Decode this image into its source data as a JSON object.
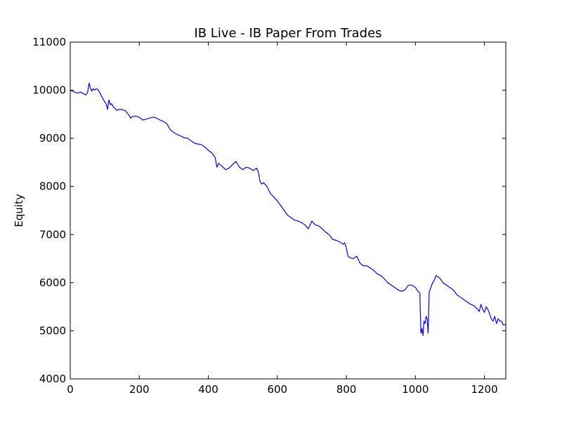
{
  "chart_data": {
    "type": "line",
    "title": "IB Live - IB Paper From Trades",
    "xlabel": "",
    "ylabel": "Equity",
    "xlim": [
      0,
      1262
    ],
    "ylim": [
      4000,
      11000
    ],
    "xticks": [
      0,
      200,
      400,
      600,
      800,
      1000,
      1200
    ],
    "yticks": [
      4000,
      5000,
      6000,
      7000,
      8000,
      9000,
      10000,
      11000
    ],
    "grid": false,
    "line_color": "#0000ff",
    "series": [
      {
        "x": [
          0,
          10,
          20,
          30,
          40,
          45,
          50,
          55,
          58,
          62,
          66,
          70,
          75,
          80,
          85,
          90,
          95,
          100,
          105,
          108,
          112,
          116,
          120,
          125,
          130,
          135,
          140,
          150,
          160,
          170,
          175,
          180,
          190,
          200,
          210,
          220,
          230,
          240,
          250,
          260,
          270,
          280,
          290,
          300,
          310,
          320,
          330,
          340,
          350,
          360,
          370,
          380,
          390,
          400,
          410,
          415,
          420,
          425,
          430,
          440,
          450,
          460,
          470,
          480,
          490,
          500,
          510,
          520,
          530,
          540,
          545,
          550,
          555,
          560,
          570,
          580,
          590,
          600,
          610,
          620,
          630,
          640,
          650,
          660,
          670,
          680,
          690,
          700,
          710,
          720,
          730,
          740,
          750,
          760,
          770,
          780,
          790,
          795,
          800,
          805,
          810,
          820,
          830,
          840,
          850,
          860,
          870,
          880,
          890,
          900,
          910,
          920,
          930,
          940,
          950,
          960,
          970,
          980,
          990,
          1000,
          1005,
          1010,
          1013,
          1016,
          1019,
          1022,
          1025,
          1028,
          1031,
          1034,
          1037,
          1040,
          1045,
          1050,
          1055,
          1060,
          1070,
          1080,
          1090,
          1100,
          1110,
          1120,
          1130,
          1140,
          1150,
          1160,
          1170,
          1180,
          1185,
          1190,
          1195,
          1200,
          1205,
          1210,
          1215,
          1220,
          1225,
          1230,
          1235,
          1240,
          1245,
          1250,
          1255,
          1262
        ],
        "y": [
          10000,
          9970,
          9940,
          9960,
          9920,
          9900,
          9950,
          10150,
          10050,
          9980,
          10030,
          10000,
          10030,
          10010,
          9960,
          9880,
          9820,
          9760,
          9700,
          9600,
          9800,
          9700,
          9720,
          9650,
          9620,
          9580,
          9600,
          9600,
          9570,
          9480,
          9420,
          9450,
          9460,
          9440,
          9380,
          9400,
          9420,
          9440,
          9420,
          9380,
          9350,
          9300,
          9180,
          9120,
          9080,
          9050,
          9010,
          9000,
          8950,
          8900,
          8880,
          8870,
          8820,
          8750,
          8700,
          8650,
          8600,
          8400,
          8480,
          8420,
          8350,
          8380,
          8450,
          8520,
          8400,
          8350,
          8400,
          8380,
          8330,
          8380,
          8300,
          8100,
          8050,
          8080,
          8000,
          7850,
          7780,
          7700,
          7600,
          7500,
          7400,
          7350,
          7300,
          7280,
          7250,
          7200,
          7120,
          7280,
          7200,
          7180,
          7120,
          7050,
          7000,
          6900,
          6880,
          6850,
          6800,
          6830,
          6720,
          6550,
          6520,
          6500,
          6550,
          6400,
          6350,
          6350,
          6300,
          6250,
          6180,
          6150,
          6080,
          6000,
          5950,
          5900,
          5850,
          5820,
          5850,
          5950,
          5950,
          5900,
          5850,
          5800,
          5780,
          4950,
          5050,
          4900,
          5200,
          5150,
          5300,
          5250,
          4950,
          5800,
          5900,
          6000,
          6050,
          6150,
          6100,
          6000,
          5950,
          5900,
          5850,
          5750,
          5700,
          5650,
          5600,
          5550,
          5520,
          5450,
          5400,
          5550,
          5450,
          5380,
          5500,
          5450,
          5350,
          5250,
          5200,
          5300,
          5150,
          5250,
          5200,
          5200,
          5120,
          5130
        ]
      }
    ]
  }
}
